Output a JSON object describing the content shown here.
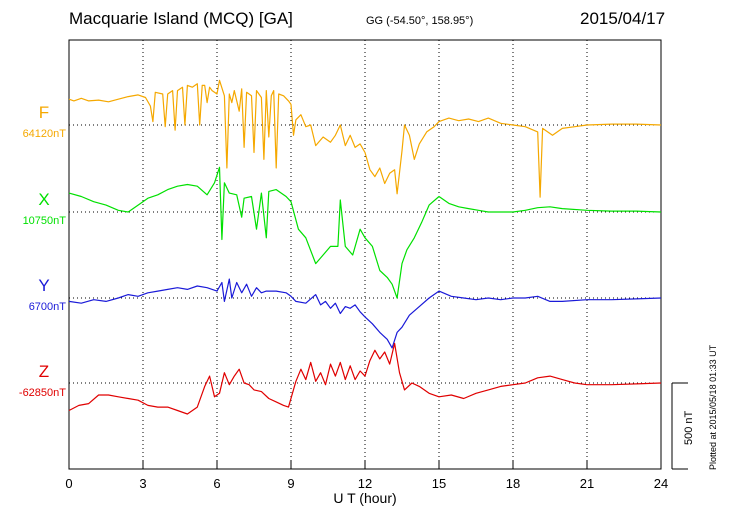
{
  "header": {
    "station": "Macquarie Island (MCQ)  [GA]",
    "coords": "GG (-54.50°, 158.95°)",
    "date": "2015/04/17"
  },
  "stamp": "Plotted at 2015/05/18 01:33 UT",
  "chart_data": {
    "type": "line",
    "xlabel": "U T (hour)",
    "xlim": [
      0,
      24
    ],
    "xticks": [
      0,
      3,
      6,
      9,
      12,
      15,
      18,
      21,
      24
    ],
    "grid": "vertical dotted lines at each xtick; dotted baseline per trace",
    "scale_bar": {
      "label": "500 nT",
      "value_nT": 500
    },
    "series": [
      {
        "name": "F",
        "baseline_label": "64120nT",
        "baseline_nT": 64120,
        "color": "#f5a800",
        "points": [
          [
            0,
            150
          ],
          [
            0.2,
            140
          ],
          [
            0.5,
            155
          ],
          [
            0.8,
            140
          ],
          [
            1.2,
            145
          ],
          [
            1.6,
            135
          ],
          [
            2,
            150
          ],
          [
            2.4,
            165
          ],
          [
            2.8,
            175
          ],
          [
            3.1,
            160
          ],
          [
            3.3,
            110
          ],
          [
            3.4,
            20
          ],
          [
            3.5,
            190
          ],
          [
            3.8,
            180
          ],
          [
            3.9,
            -10
          ],
          [
            4.0,
            180
          ],
          [
            4.2,
            200
          ],
          [
            4.3,
            -30
          ],
          [
            4.4,
            200
          ],
          [
            4.6,
            220
          ],
          [
            4.7,
            0
          ],
          [
            4.8,
            230
          ],
          [
            5.0,
            220
          ],
          [
            5.2,
            240
          ],
          [
            5.3,
            0
          ],
          [
            5.4,
            230
          ],
          [
            5.5,
            230
          ],
          [
            5.6,
            130
          ],
          [
            5.7,
            220
          ],
          [
            5.8,
            200
          ],
          [
            6.0,
            180
          ],
          [
            6.1,
            260
          ],
          [
            6.3,
            170
          ],
          [
            6.4,
            -250
          ],
          [
            6.5,
            180
          ],
          [
            6.6,
            130
          ],
          [
            6.7,
            200
          ],
          [
            6.9,
            80
          ],
          [
            7.0,
            210
          ],
          [
            7.1,
            -130
          ],
          [
            7.2,
            190
          ],
          [
            7.4,
            170
          ],
          [
            7.5,
            -160
          ],
          [
            7.6,
            200
          ],
          [
            7.8,
            160
          ],
          [
            7.9,
            -200
          ],
          [
            8.0,
            200
          ],
          [
            8.1,
            -70
          ],
          [
            8.2,
            170
          ],
          [
            8.3,
            200
          ],
          [
            8.4,
            -250
          ],
          [
            8.5,
            180
          ],
          [
            8.7,
            170
          ],
          [
            8.9,
            140
          ],
          [
            9.0,
            120
          ],
          [
            9.1,
            -60
          ],
          [
            9.2,
            30
          ],
          [
            9.4,
            60
          ],
          [
            9.6,
            -10
          ],
          [
            9.8,
            0
          ],
          [
            10.0,
            -120
          ],
          [
            10.3,
            -70
          ],
          [
            10.6,
            -100
          ],
          [
            10.8,
            -60
          ],
          [
            11.0,
            0
          ],
          [
            11.2,
            -120
          ],
          [
            11.4,
            -60
          ],
          [
            11.6,
            -130
          ],
          [
            11.8,
            -110
          ],
          [
            12.0,
            -160
          ],
          [
            12.2,
            -260
          ],
          [
            12.4,
            -300
          ],
          [
            12.6,
            -250
          ],
          [
            12.8,
            -340
          ],
          [
            13.0,
            -280
          ],
          [
            13.2,
            -260
          ],
          [
            13.3,
            -400
          ],
          [
            13.5,
            -150
          ],
          [
            13.6,
            0
          ],
          [
            13.8,
            -60
          ],
          [
            14.0,
            -200
          ],
          [
            14.2,
            -110
          ],
          [
            14.5,
            -40
          ],
          [
            14.8,
            -10
          ],
          [
            15.0,
            20
          ],
          [
            15.4,
            40
          ],
          [
            15.8,
            25
          ],
          [
            16.2,
            35
          ],
          [
            16.6,
            20
          ],
          [
            17.0,
            40
          ],
          [
            17.5,
            10
          ],
          [
            18.0,
            0
          ],
          [
            18.5,
            -10
          ],
          [
            19.0,
            -40
          ],
          [
            19.1,
            -420
          ],
          [
            19.2,
            -20
          ],
          [
            19.6,
            -60
          ],
          [
            20.0,
            -20
          ],
          [
            20.5,
            -10
          ],
          [
            21.0,
            0
          ],
          [
            22.0,
            5
          ],
          [
            23.0,
            5
          ],
          [
            24.0,
            0
          ]
        ]
      },
      {
        "name": "X",
        "baseline_label": "10750nT",
        "baseline_nT": 10750,
        "color": "#00e000",
        "points": [
          [
            0,
            110
          ],
          [
            0.5,
            90
          ],
          [
            1.0,
            60
          ],
          [
            1.5,
            40
          ],
          [
            2.0,
            10
          ],
          [
            2.4,
            0
          ],
          [
            2.8,
            40
          ],
          [
            3.2,
            80
          ],
          [
            3.6,
            100
          ],
          [
            4.0,
            130
          ],
          [
            4.4,
            150
          ],
          [
            4.8,
            160
          ],
          [
            5.2,
            150
          ],
          [
            5.6,
            100
          ],
          [
            5.9,
            170
          ],
          [
            6.1,
            260
          ],
          [
            6.2,
            -160
          ],
          [
            6.3,
            170
          ],
          [
            6.5,
            110
          ],
          [
            6.8,
            100
          ],
          [
            7.0,
            -30
          ],
          [
            7.1,
            80
          ],
          [
            7.4,
            90
          ],
          [
            7.6,
            -100
          ],
          [
            7.8,
            110
          ],
          [
            8.0,
            -150
          ],
          [
            8.1,
            120
          ],
          [
            8.4,
            130
          ],
          [
            8.8,
            90
          ],
          [
            9.0,
            60
          ],
          [
            9.3,
            -100
          ],
          [
            9.6,
            -150
          ],
          [
            10.0,
            -300
          ],
          [
            10.3,
            -250
          ],
          [
            10.6,
            -200
          ],
          [
            10.9,
            -200
          ],
          [
            11.0,
            70
          ],
          [
            11.2,
            -200
          ],
          [
            11.5,
            -250
          ],
          [
            11.8,
            -100
          ],
          [
            12.0,
            -150
          ],
          [
            12.3,
            -200
          ],
          [
            12.6,
            -340
          ],
          [
            12.9,
            -380
          ],
          [
            13.1,
            -420
          ],
          [
            13.3,
            -500
          ],
          [
            13.5,
            -300
          ],
          [
            13.7,
            -220
          ],
          [
            14.0,
            -150
          ],
          [
            14.3,
            -60
          ],
          [
            14.6,
            40
          ],
          [
            15.0,
            90
          ],
          [
            15.4,
            50
          ],
          [
            15.8,
            30
          ],
          [
            16.2,
            20
          ],
          [
            16.6,
            10
          ],
          [
            17.0,
            0
          ],
          [
            18.0,
            0
          ],
          [
            18.5,
            10
          ],
          [
            19.0,
            25
          ],
          [
            19.5,
            30
          ],
          [
            20.0,
            20
          ],
          [
            21.0,
            10
          ],
          [
            22.0,
            5
          ],
          [
            23.0,
            5
          ],
          [
            24.0,
            0
          ]
        ]
      },
      {
        "name": "Y",
        "baseline_label": "6700nT",
        "baseline_nT": 6700,
        "color": "#1a1ad8",
        "points": [
          [
            0,
            -20
          ],
          [
            0.5,
            -30
          ],
          [
            1.0,
            -10
          ],
          [
            1.5,
            -20
          ],
          [
            2.0,
            0
          ],
          [
            2.4,
            20
          ],
          [
            2.8,
            10
          ],
          [
            3.2,
            30
          ],
          [
            3.6,
            40
          ],
          [
            4.0,
            50
          ],
          [
            4.4,
            60
          ],
          [
            4.8,
            50
          ],
          [
            5.2,
            70
          ],
          [
            5.6,
            60
          ],
          [
            6.0,
            40
          ],
          [
            6.2,
            90
          ],
          [
            6.3,
            -20
          ],
          [
            6.5,
            110
          ],
          [
            6.6,
            0
          ],
          [
            6.8,
            90
          ],
          [
            7.0,
            30
          ],
          [
            7.2,
            80
          ],
          [
            7.4,
            10
          ],
          [
            7.6,
            60
          ],
          [
            7.8,
            30
          ],
          [
            8.0,
            40
          ],
          [
            8.4,
            40
          ],
          [
            8.8,
            30
          ],
          [
            9.0,
            10
          ],
          [
            9.2,
            -20
          ],
          [
            9.6,
            -30
          ],
          [
            10.0,
            20
          ],
          [
            10.2,
            -40
          ],
          [
            10.4,
            -20
          ],
          [
            10.6,
            -60
          ],
          [
            10.8,
            -30
          ],
          [
            11.0,
            -90
          ],
          [
            11.2,
            -50
          ],
          [
            11.4,
            -60
          ],
          [
            11.6,
            -40
          ],
          [
            11.8,
            -80
          ],
          [
            12.0,
            -110
          ],
          [
            12.3,
            -150
          ],
          [
            12.6,
            -200
          ],
          [
            12.9,
            -240
          ],
          [
            13.1,
            -290
          ],
          [
            13.3,
            -200
          ],
          [
            13.5,
            -170
          ],
          [
            13.8,
            -100
          ],
          [
            14.2,
            -50
          ],
          [
            14.6,
            0
          ],
          [
            15.0,
            40
          ],
          [
            15.5,
            10
          ],
          [
            16.0,
            0
          ],
          [
            16.5,
            -10
          ],
          [
            17.0,
            0
          ],
          [
            17.5,
            -10
          ],
          [
            18.0,
            0
          ],
          [
            18.5,
            0
          ],
          [
            19.0,
            10
          ],
          [
            19.5,
            -20
          ],
          [
            20.0,
            -20
          ],
          [
            21.0,
            -10
          ],
          [
            22.0,
            -10
          ],
          [
            23.0,
            -5
          ],
          [
            24.0,
            0
          ]
        ]
      },
      {
        "name": "Z",
        "baseline_label": "-62850nT",
        "baseline_nT": -62850,
        "color": "#e00000",
        "points": [
          [
            0,
            -160
          ],
          [
            0.4,
            -130
          ],
          [
            0.8,
            -120
          ],
          [
            1.2,
            -70
          ],
          [
            1.6,
            -70
          ],
          [
            2.0,
            -80
          ],
          [
            2.4,
            -90
          ],
          [
            2.8,
            -100
          ],
          [
            3.2,
            -130
          ],
          [
            3.6,
            -140
          ],
          [
            4.0,
            -140
          ],
          [
            4.4,
            -160
          ],
          [
            4.8,
            -180
          ],
          [
            5.2,
            -140
          ],
          [
            5.5,
            -20
          ],
          [
            5.7,
            40
          ],
          [
            5.9,
            -80
          ],
          [
            6.1,
            -60
          ],
          [
            6.3,
            60
          ],
          [
            6.5,
            -10
          ],
          [
            6.7,
            40
          ],
          [
            6.9,
            80
          ],
          [
            7.1,
            0
          ],
          [
            7.3,
            -10
          ],
          [
            7.5,
            -40
          ],
          [
            7.8,
            -50
          ],
          [
            8.1,
            -90
          ],
          [
            8.4,
            -110
          ],
          [
            8.7,
            -130
          ],
          [
            8.9,
            -140
          ],
          [
            9.2,
            10
          ],
          [
            9.4,
            80
          ],
          [
            9.6,
            20
          ],
          [
            9.8,
            120
          ],
          [
            10.0,
            10
          ],
          [
            10.2,
            60
          ],
          [
            10.4,
            -10
          ],
          [
            10.6,
            110
          ],
          [
            10.8,
            40
          ],
          [
            11.0,
            120
          ],
          [
            11.2,
            20
          ],
          [
            11.4,
            100
          ],
          [
            11.6,
            20
          ],
          [
            11.8,
            70
          ],
          [
            12.0,
            40
          ],
          [
            12.2,
            130
          ],
          [
            12.4,
            190
          ],
          [
            12.6,
            140
          ],
          [
            12.8,
            180
          ],
          [
            13.0,
            110
          ],
          [
            13.2,
            230
          ],
          [
            13.4,
            60
          ],
          [
            13.6,
            -40
          ],
          [
            13.9,
            0
          ],
          [
            14.2,
            -20
          ],
          [
            14.6,
            -60
          ],
          [
            15.0,
            -80
          ],
          [
            15.5,
            -70
          ],
          [
            16.0,
            -90
          ],
          [
            16.5,
            -60
          ],
          [
            17.0,
            -40
          ],
          [
            17.5,
            -20
          ],
          [
            18.0,
            -10
          ],
          [
            18.5,
            0
          ],
          [
            19.0,
            30
          ],
          [
            19.5,
            40
          ],
          [
            20.0,
            20
          ],
          [
            20.5,
            0
          ],
          [
            21.0,
            -10
          ],
          [
            22.0,
            -10
          ],
          [
            23.0,
            -5
          ],
          [
            24.0,
            0
          ]
        ]
      }
    ]
  }
}
